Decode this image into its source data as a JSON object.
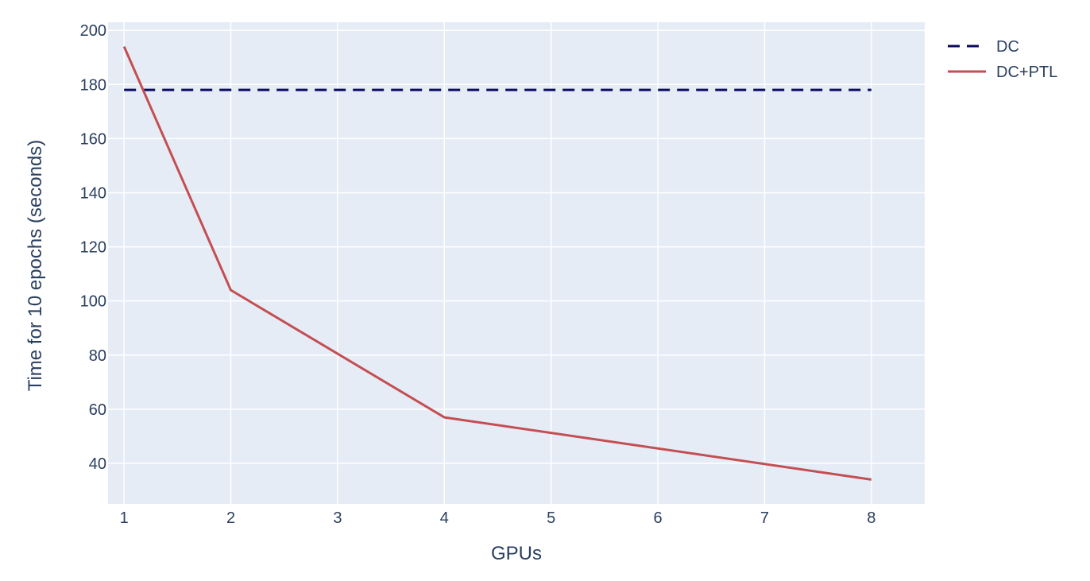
{
  "chart_data": {
    "type": "line",
    "title": "",
    "xlabel": "GPUs",
    "ylabel": "Time for 10 epochs (seconds)",
    "xlim": [
      0.85,
      8.5
    ],
    "ylim": [
      25,
      203
    ],
    "xticks": [
      1,
      2,
      3,
      4,
      5,
      6,
      7,
      8
    ],
    "yticks": [
      40,
      60,
      80,
      100,
      120,
      140,
      160,
      180,
      200
    ],
    "grid": true,
    "legend_position": "top-right",
    "colors": {
      "plot_background": "#e5ecf6",
      "grid": "#ffffff",
      "text": "#2a3f5f"
    },
    "series": [
      {
        "name": "DC",
        "line_style": "dashed",
        "color": "#0b0b5e",
        "x": [
          1,
          8
        ],
        "y": [
          178,
          178
        ]
      },
      {
        "name": "DC+PTL",
        "line_style": "solid",
        "color": "#c44e52",
        "x": [
          1,
          2,
          4,
          8
        ],
        "y": [
          194,
          104,
          57,
          34
        ]
      }
    ]
  }
}
